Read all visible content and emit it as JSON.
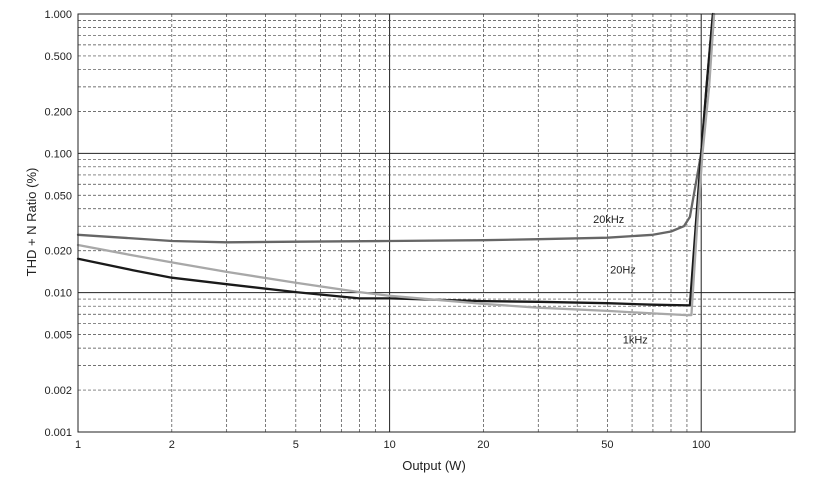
{
  "chart_data": {
    "type": "line",
    "title": "",
    "xlabel": "Output (W)",
    "ylabel": "THD + N Ratio (%)",
    "x_scale": "log",
    "y_scale": "log",
    "xlim": [
      1,
      200
    ],
    "ylim": [
      0.001,
      1.0
    ],
    "grid": true,
    "x_ticks": [
      {
        "value": 1,
        "label": "1"
      },
      {
        "value": 2,
        "label": "2"
      },
      {
        "value": 5,
        "label": "5"
      },
      {
        "value": 10,
        "label": "10"
      },
      {
        "value": 20,
        "label": "20"
      },
      {
        "value": 50,
        "label": "50"
      },
      {
        "value": 100,
        "label": "100"
      }
    ],
    "y_ticks": [
      {
        "value": 0.001,
        "label": "0.001"
      },
      {
        "value": 0.002,
        "label": "0.002"
      },
      {
        "value": 0.005,
        "label": "0.005"
      },
      {
        "value": 0.01,
        "label": "0.010"
      },
      {
        "value": 0.02,
        "label": "0.020"
      },
      {
        "value": 0.05,
        "label": "0.050"
      },
      {
        "value": 0.1,
        "label": "0.100"
      },
      {
        "value": 0.2,
        "label": "0.200"
      },
      {
        "value": 0.5,
        "label": "0.500"
      },
      {
        "value": 1.0,
        "label": "1.000"
      }
    ],
    "series": [
      {
        "name": "20kHz",
        "color": "#666666",
        "label_at": [
          45,
          0.0315
        ],
        "points": [
          [
            1,
            0.026
          ],
          [
            1.5,
            0.0245
          ],
          [
            2,
            0.0235
          ],
          [
            3,
            0.023
          ],
          [
            5,
            0.0232
          ],
          [
            10,
            0.0235
          ],
          [
            20,
            0.0238
          ],
          [
            30,
            0.0242
          ],
          [
            50,
            0.0248
          ],
          [
            70,
            0.026
          ],
          [
            80,
            0.0275
          ],
          [
            88,
            0.03
          ],
          [
            92,
            0.035
          ],
          [
            96,
            0.06
          ],
          [
            100,
            0.1
          ],
          [
            104,
            0.3
          ],
          [
            109,
            1.0
          ]
        ]
      },
      {
        "name": "20Hz",
        "color": "#1a1a1a",
        "label_at": [
          51,
          0.0137
        ],
        "points": [
          [
            1,
            0.0175
          ],
          [
            1.5,
            0.0145
          ],
          [
            2,
            0.0128
          ],
          [
            3,
            0.0115
          ],
          [
            5,
            0.0101
          ],
          [
            8,
            0.0091
          ],
          [
            10,
            0.0091
          ],
          [
            20,
            0.0087
          ],
          [
            30,
            0.0086
          ],
          [
            50,
            0.0084
          ],
          [
            70,
            0.0082
          ],
          [
            92,
            0.0081
          ],
          [
            96,
            0.03
          ],
          [
            100,
            0.1
          ],
          [
            104,
            0.3
          ],
          [
            109,
            1.0
          ]
        ]
      },
      {
        "name": "1kHz",
        "color": "#a8a8a8",
        "label_at": [
          56,
          0.0043
        ],
        "points": [
          [
            1,
            0.022
          ],
          [
            1.5,
            0.0185
          ],
          [
            2,
            0.0165
          ],
          [
            3,
            0.0141
          ],
          [
            5,
            0.0118
          ],
          [
            8,
            0.0101
          ],
          [
            10,
            0.0095
          ],
          [
            20,
            0.0083
          ],
          [
            30,
            0.0078
          ],
          [
            50,
            0.0074
          ],
          [
            70,
            0.0071
          ],
          [
            90,
            0.0069
          ],
          [
            93,
            0.0069
          ],
          [
            97,
            0.03
          ],
          [
            101,
            0.1
          ],
          [
            106,
            0.3
          ],
          [
            110,
            1.0
          ]
        ]
      }
    ]
  }
}
